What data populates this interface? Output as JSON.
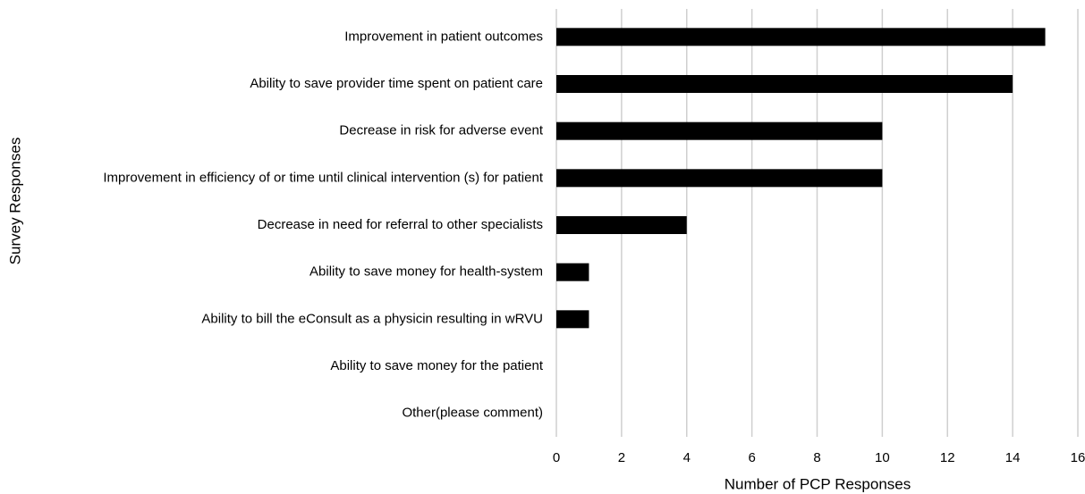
{
  "chart_data": {
    "type": "bar",
    "orientation": "horizontal",
    "categories": [
      "Improvement in patient outcomes",
      "Ability to save provider time spent on patient care",
      "Decrease in risk for adverse event",
      "Improvement in efficiency of or time until clinical intervention (s) for patient",
      "Decrease in need for referral to other specialists",
      "Ability to save money for health-system",
      "Ability to bill the eConsult as a physicin resulting in wRVU",
      "Ability to save money for the patient",
      "Other(please comment)"
    ],
    "values": [
      15,
      14,
      10,
      10,
      4,
      1,
      1,
      0,
      0
    ],
    "color": "#000000",
    "xlabel": "Number of PCP Responses",
    "ylabel": "Survey Responses",
    "xlim": [
      0,
      16
    ],
    "xticks": [
      0,
      2,
      4,
      6,
      8,
      10,
      12,
      14,
      16
    ],
    "grid": true
  }
}
